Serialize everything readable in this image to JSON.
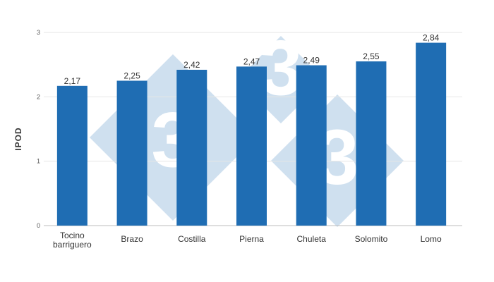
{
  "chart_data": {
    "type": "bar",
    "title": "",
    "xlabel": "",
    "ylabel": "IPOD",
    "categories": [
      [
        "Tocino",
        "barriguero"
      ],
      [
        "Brazo"
      ],
      [
        "Costilla"
      ],
      [
        "Pierna"
      ],
      [
        "Chuleta"
      ],
      [
        "Solomito"
      ],
      [
        "Lomo"
      ]
    ],
    "values": [
      2.17,
      2.25,
      2.42,
      2.47,
      2.49,
      2.55,
      2.84
    ],
    "value_labels": [
      "2,17",
      "2,25",
      "2,42",
      "2,47",
      "2,49",
      "2,55",
      "2,84"
    ],
    "y_ticks": [
      "0",
      "1",
      "2",
      "3"
    ],
    "ylim": [
      0,
      3
    ],
    "grid": true,
    "legend": "none",
    "bar_color": "#1f6db3",
    "grid_color": "#e6e6e6",
    "watermark": {
      "glyph": "3",
      "color": "#cfe0ef"
    }
  }
}
